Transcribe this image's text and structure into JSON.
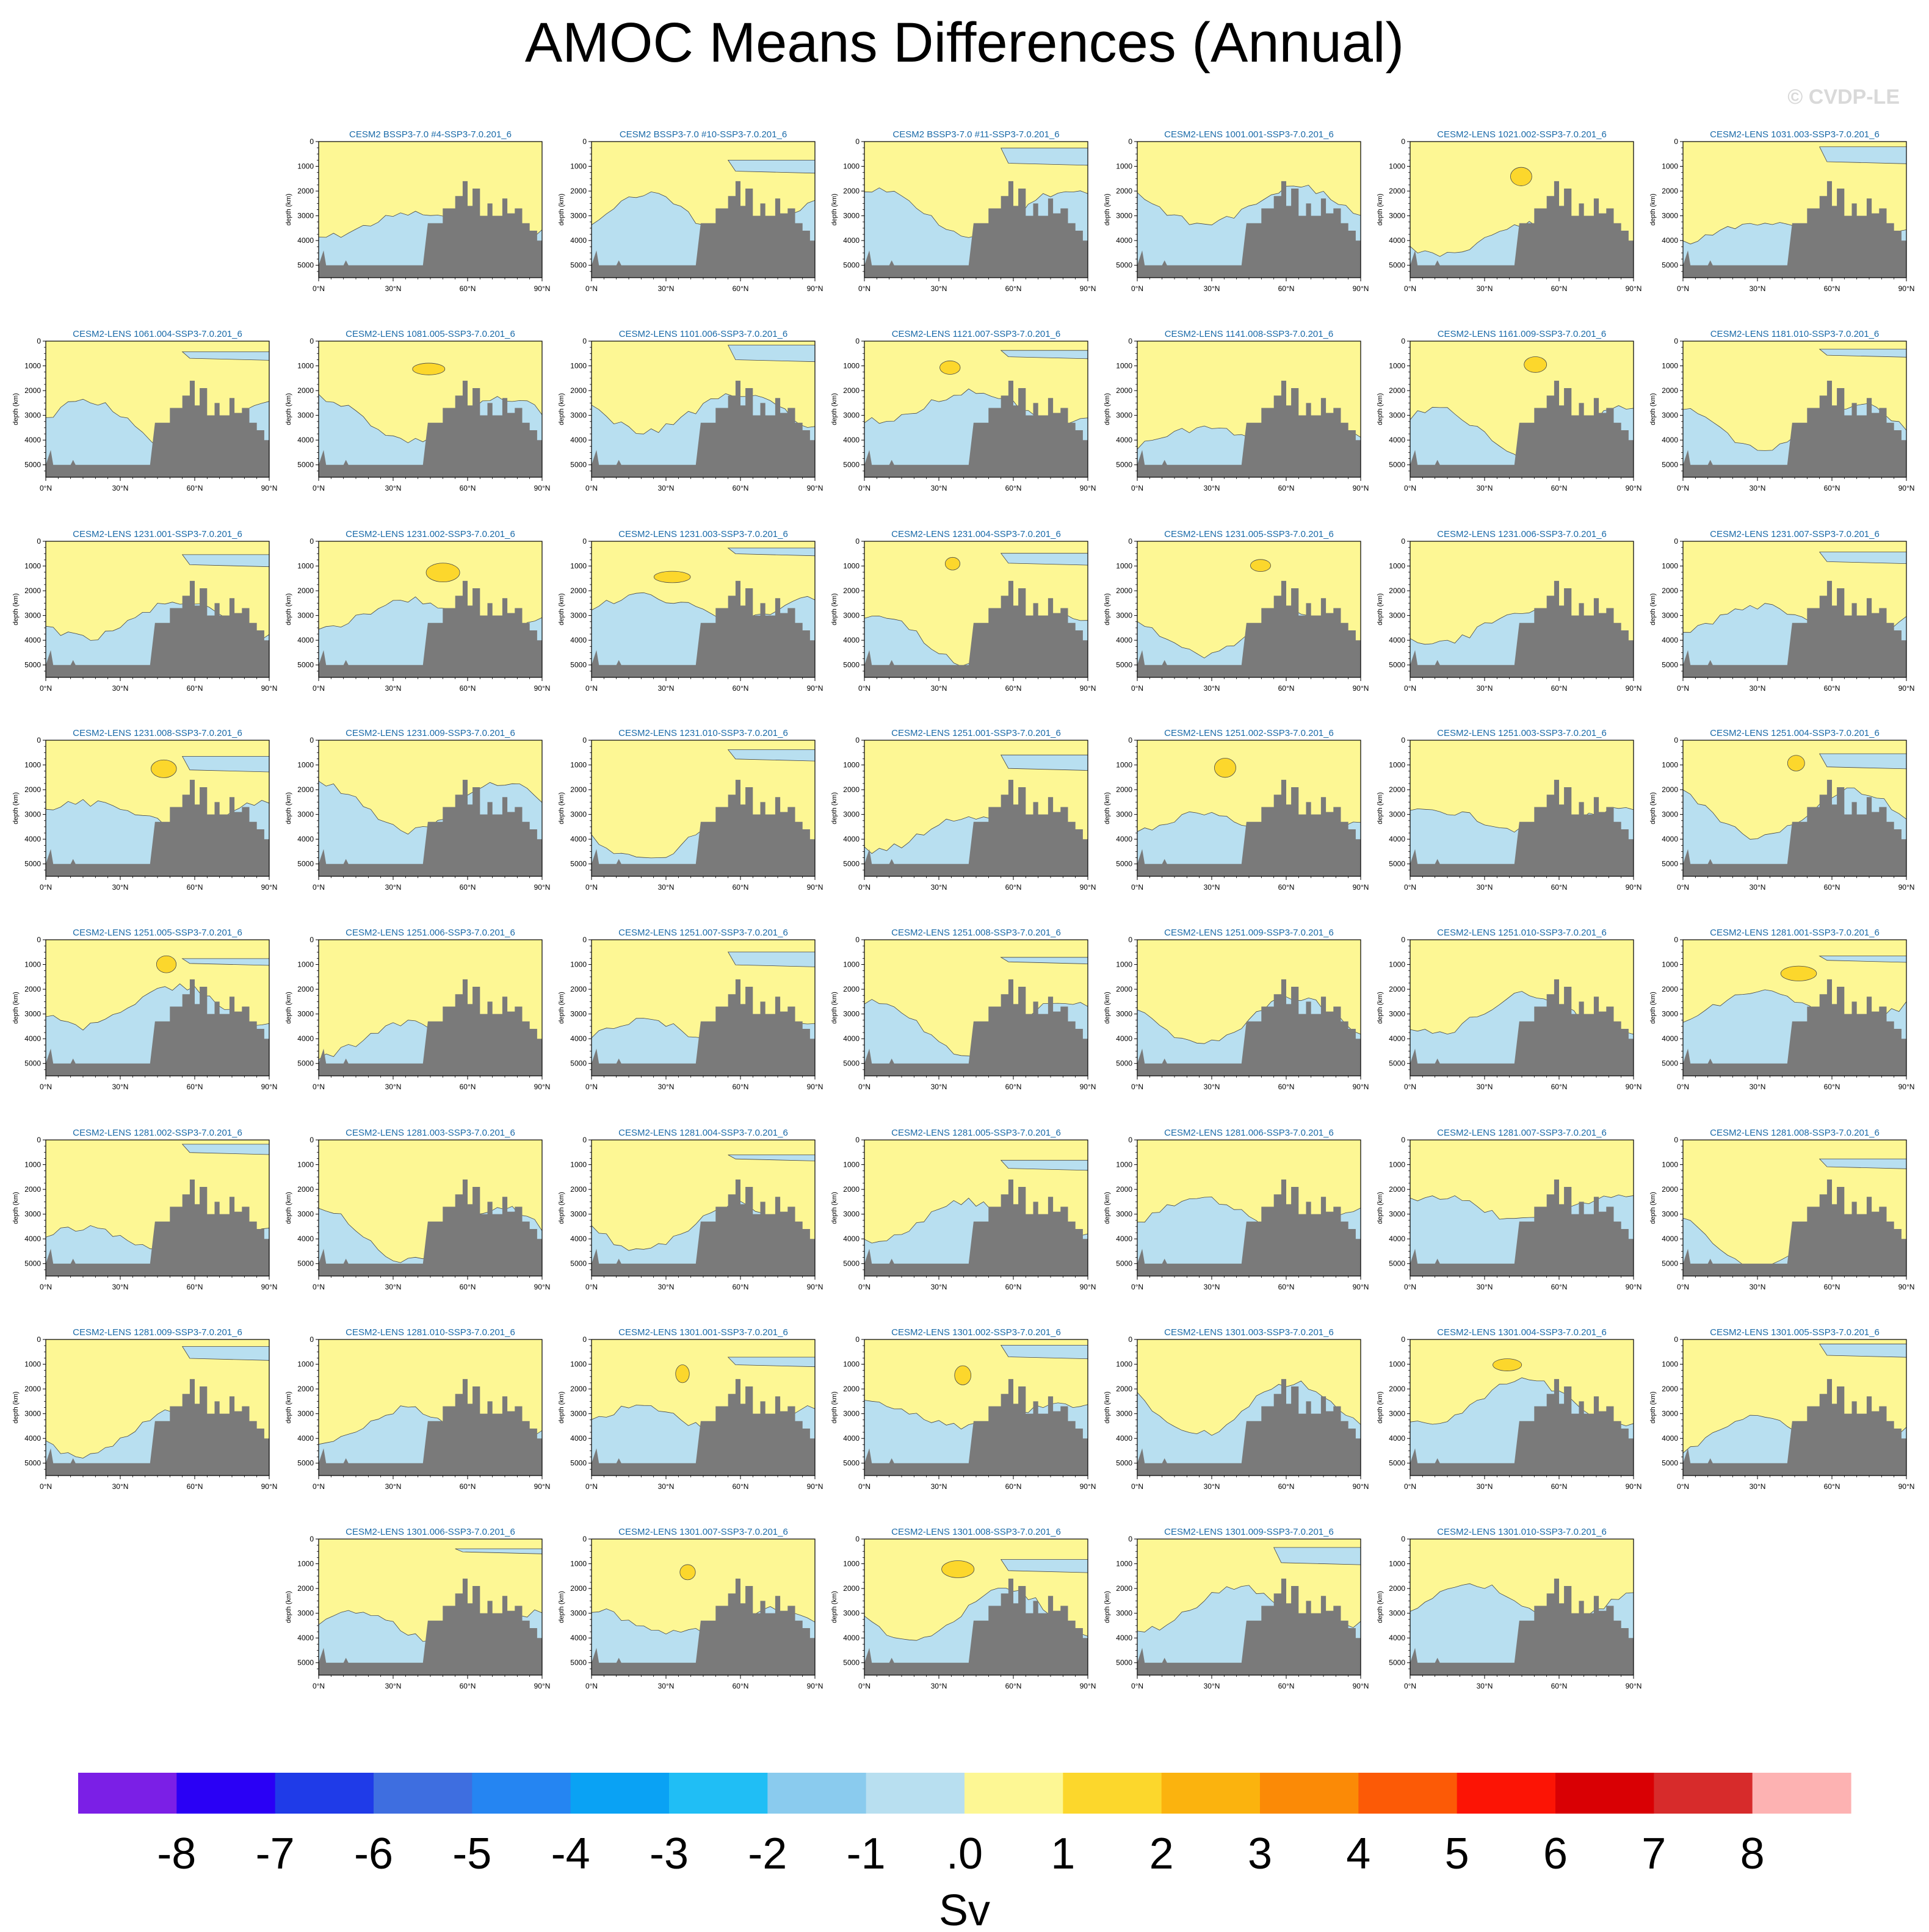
{
  "title": "AMOC Means Differences (Annual)",
  "copyright": "© CVDP-LE",
  "chart_data": {
    "type": "contour-grid",
    "grid": {
      "columns": 7,
      "rows": 8
    },
    "panels": [
      {
        "title": "CESM2 BSSP3-7.0 #4-SSP3-7.0.201_6",
        "row": 0,
        "col": 1
      },
      {
        "title": "CESM2 BSSP3-7.0 #10-SSP3-7.0.201_6",
        "row": 0,
        "col": 2
      },
      {
        "title": "CESM2 BSSP3-7.0 #11-SSP3-7.0.201_6",
        "row": 0,
        "col": 3
      },
      {
        "title": "CESM2-LENS 1001.001-SSP3-7.0.201_6",
        "row": 0,
        "col": 4
      },
      {
        "title": "CESM2-LENS 1021.002-SSP3-7.0.201_6",
        "row": 0,
        "col": 5
      },
      {
        "title": "CESM2-LENS 1031.003-SSP3-7.0.201_6",
        "row": 0,
        "col": 6
      },
      {
        "title": "CESM2-LENS 1061.004-SSP3-7.0.201_6",
        "row": 1,
        "col": 0
      },
      {
        "title": "CESM2-LENS 1081.005-SSP3-7.0.201_6",
        "row": 1,
        "col": 1
      },
      {
        "title": "CESM2-LENS 1101.006-SSP3-7.0.201_6",
        "row": 1,
        "col": 2
      },
      {
        "title": "CESM2-LENS 1121.007-SSP3-7.0.201_6",
        "row": 1,
        "col": 3
      },
      {
        "title": "CESM2-LENS 1141.008-SSP3-7.0.201_6",
        "row": 1,
        "col": 4
      },
      {
        "title": "CESM2-LENS 1161.009-SSP3-7.0.201_6",
        "row": 1,
        "col": 5
      },
      {
        "title": "CESM2-LENS 1181.010-SSP3-7.0.201_6",
        "row": 1,
        "col": 6
      },
      {
        "title": "CESM2-LENS 1231.001-SSP3-7.0.201_6",
        "row": 2,
        "col": 0
      },
      {
        "title": "CESM2-LENS 1231.002-SSP3-7.0.201_6",
        "row": 2,
        "col": 1
      },
      {
        "title": "CESM2-LENS 1231.003-SSP3-7.0.201_6",
        "row": 2,
        "col": 2
      },
      {
        "title": "CESM2-LENS 1231.004-SSP3-7.0.201_6",
        "row": 2,
        "col": 3
      },
      {
        "title": "CESM2-LENS 1231.005-SSP3-7.0.201_6",
        "row": 2,
        "col": 4
      },
      {
        "title": "CESM2-LENS 1231.006-SSP3-7.0.201_6",
        "row": 2,
        "col": 5
      },
      {
        "title": "CESM2-LENS 1231.007-SSP3-7.0.201_6",
        "row": 2,
        "col": 6
      },
      {
        "title": "CESM2-LENS 1231.008-SSP3-7.0.201_6",
        "row": 3,
        "col": 0
      },
      {
        "title": "CESM2-LENS 1231.009-SSP3-7.0.201_6",
        "row": 3,
        "col": 1
      },
      {
        "title": "CESM2-LENS 1231.010-SSP3-7.0.201_6",
        "row": 3,
        "col": 2
      },
      {
        "title": "CESM2-LENS 1251.001-SSP3-7.0.201_6",
        "row": 3,
        "col": 3
      },
      {
        "title": "CESM2-LENS 1251.002-SSP3-7.0.201_6",
        "row": 3,
        "col": 4
      },
      {
        "title": "CESM2-LENS 1251.003-SSP3-7.0.201_6",
        "row": 3,
        "col": 5
      },
      {
        "title": "CESM2-LENS 1251.004-SSP3-7.0.201_6",
        "row": 3,
        "col": 6
      },
      {
        "title": "CESM2-LENS 1251.005-SSP3-7.0.201_6",
        "row": 4,
        "col": 0
      },
      {
        "title": "CESM2-LENS 1251.006-SSP3-7.0.201_6",
        "row": 4,
        "col": 1
      },
      {
        "title": "CESM2-LENS 1251.007-SSP3-7.0.201_6",
        "row": 4,
        "col": 2
      },
      {
        "title": "CESM2-LENS 1251.008-SSP3-7.0.201_6",
        "row": 4,
        "col": 3
      },
      {
        "title": "CESM2-LENS 1251.009-SSP3-7.0.201_6",
        "row": 4,
        "col": 4
      },
      {
        "title": "CESM2-LENS 1251.010-SSP3-7.0.201_6",
        "row": 4,
        "col": 5
      },
      {
        "title": "CESM2-LENS 1281.001-SSP3-7.0.201_6",
        "row": 4,
        "col": 6
      },
      {
        "title": "CESM2-LENS 1281.002-SSP3-7.0.201_6",
        "row": 5,
        "col": 0
      },
      {
        "title": "CESM2-LENS 1281.003-SSP3-7.0.201_6",
        "row": 5,
        "col": 1
      },
      {
        "title": "CESM2-LENS 1281.004-SSP3-7.0.201_6",
        "row": 5,
        "col": 2
      },
      {
        "title": "CESM2-LENS 1281.005-SSP3-7.0.201_6",
        "row": 5,
        "col": 3
      },
      {
        "title": "CESM2-LENS 1281.006-SSP3-7.0.201_6",
        "row": 5,
        "col": 4
      },
      {
        "title": "CESM2-LENS 1281.007-SSP3-7.0.201_6",
        "row": 5,
        "col": 5
      },
      {
        "title": "CESM2-LENS 1281.008-SSP3-7.0.201_6",
        "row": 5,
        "col": 6
      },
      {
        "title": "CESM2-LENS 1281.009-SSP3-7.0.201_6",
        "row": 6,
        "col": 0
      },
      {
        "title": "CESM2-LENS 1281.010-SSP3-7.0.201_6",
        "row": 6,
        "col": 1
      },
      {
        "title": "CESM2-LENS 1301.001-SSP3-7.0.201_6",
        "row": 6,
        "col": 2
      },
      {
        "title": "CESM2-LENS 1301.002-SSP3-7.0.201_6",
        "row": 6,
        "col": 3
      },
      {
        "title": "CESM2-LENS 1301.003-SSP3-7.0.201_6",
        "row": 6,
        "col": 4
      },
      {
        "title": "CESM2-LENS 1301.004-SSP3-7.0.201_6",
        "row": 6,
        "col": 5
      },
      {
        "title": "CESM2-LENS 1301.005-SSP3-7.0.201_6",
        "row": 6,
        "col": 6
      },
      {
        "title": "CESM2-LENS 1301.006-SSP3-7.0.201_6",
        "row": 7,
        "col": 1
      },
      {
        "title": "CESM2-LENS 1301.007-SSP3-7.0.201_6",
        "row": 7,
        "col": 2
      },
      {
        "title": "CESM2-LENS 1301.008-SSP3-7.0.201_6",
        "row": 7,
        "col": 3
      },
      {
        "title": "CESM2-LENS 1301.009-SSP3-7.0.201_6",
        "row": 7,
        "col": 4
      },
      {
        "title": "CESM2-LENS 1301.010-SSP3-7.0.201_6",
        "row": 7,
        "col": 5
      }
    ],
    "x_axis": {
      "ticks": [
        "0°N",
        "30°N",
        "60°N",
        "90°N"
      ],
      "range": [
        0,
        90
      ]
    },
    "y_axis": {
      "label": "depth (km)",
      "ticks": [
        "0",
        "1000",
        "2000",
        "3000",
        "4000",
        "5000"
      ],
      "range": [
        0,
        5500
      ],
      "inverted": true
    },
    "colorbar": {
      "unit": "Sv",
      "levels": [
        "-8",
        "-7",
        "-6",
        "-5",
        "-4",
        "-3",
        "-2",
        "-1",
        ".0",
        "1",
        "2",
        "3",
        "4",
        "5",
        "6",
        "7",
        "8"
      ],
      "colors": [
        "#7b1fe6",
        "#2a00f5",
        "#1f3be8",
        "#3e6ee0",
        "#2585f2",
        "#0aa2f4",
        "#20bef5",
        "#8acbee",
        "#b8dff0",
        "#fdf794",
        "#fcd72c",
        "#fbb30e",
        "#fb8a06",
        "#fc5a06",
        "#fc1405",
        "#d90004",
        "#d72b2b",
        "#fdb2b2"
      ]
    },
    "colors": {
      "ocean_positive": "#fdf794",
      "ocean_negative": "#b8dff0",
      "strong_positive": "#fcd72c",
      "land": "#7a7a7a"
    }
  }
}
